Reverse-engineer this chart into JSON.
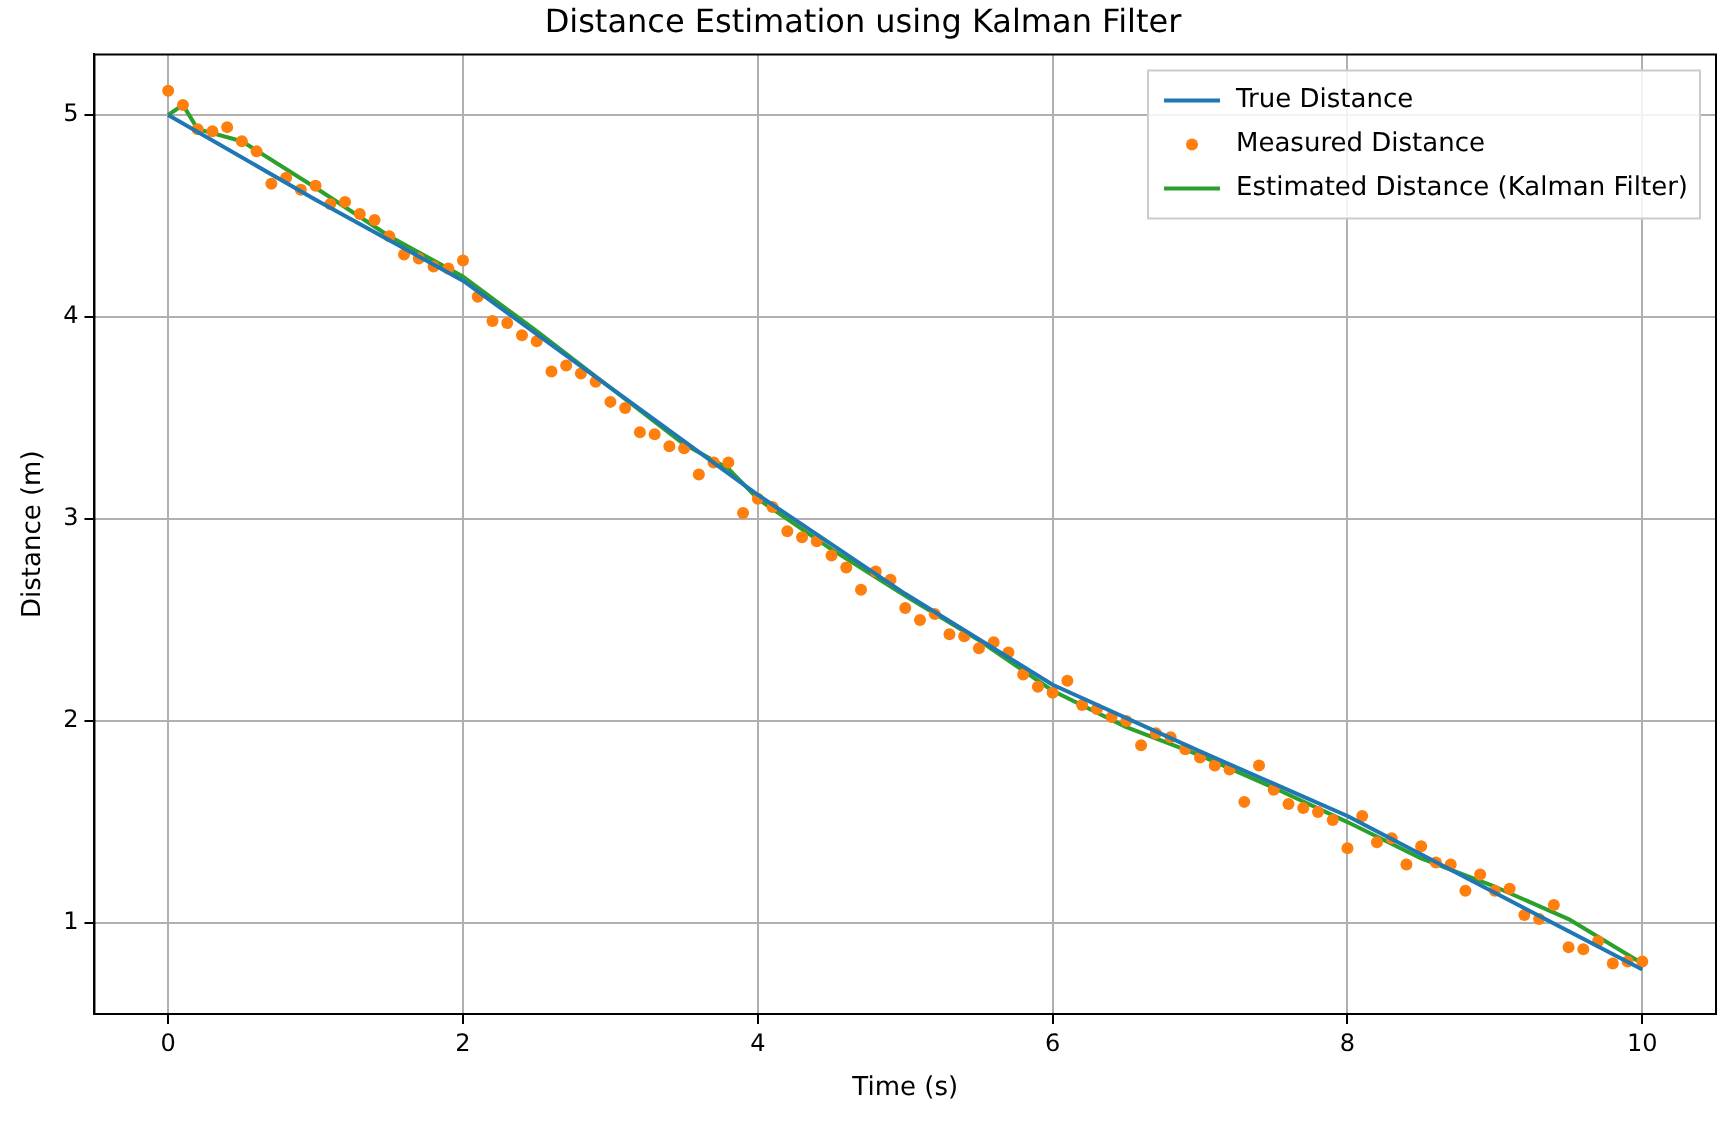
{
  "chart_data": {
    "type": "line",
    "title": "Distance Estimation using Kalman Filter",
    "xlabel": "Time (s)",
    "ylabel": "Distance (m)",
    "xlim": [
      -0.5,
      10.5
    ],
    "ylim": [
      0.55,
      5.3
    ],
    "xticks": [
      0,
      2,
      4,
      6,
      8,
      10
    ],
    "yticks": [
      1,
      2,
      3,
      4,
      5
    ],
    "grid": true,
    "legend": "top right",
    "series": [
      {
        "name": "True Distance",
        "color": "#1f77b4",
        "marker": "none",
        "x": [
          0,
          1,
          2,
          3,
          4,
          5,
          6,
          7,
          8,
          9,
          10
        ],
        "values": [
          5,
          4.58,
          4.18,
          3.65,
          3.12,
          2.63,
          2.18,
          1.85,
          1.53,
          1.15,
          0.77
        ]
      },
      {
        "name": "Measured Distance",
        "color": "#ff7f0e",
        "type": "scatter",
        "marker": "circle",
        "x": [
          0,
          0.1,
          0.2,
          0.3,
          0.4,
          0.5,
          0.6,
          0.7,
          0.8,
          0.9,
          1,
          1.1,
          1.2,
          1.3,
          1.4,
          1.5,
          1.6,
          1.7,
          1.8,
          1.9,
          2,
          2.1,
          2.2,
          2.3,
          2.4,
          2.5,
          2.6,
          2.7,
          2.8,
          2.9,
          3,
          3.1,
          3.2,
          3.3,
          3.4,
          3.5,
          3.6,
          3.7,
          3.8,
          3.9,
          4,
          4.1,
          4.2,
          4.3,
          4.4,
          4.5,
          4.6,
          4.7,
          4.8,
          4.9,
          5,
          5.1,
          5.2,
          5.3,
          5.4,
          5.5,
          5.6,
          5.7,
          5.8,
          5.9,
          6,
          6.1,
          6.2,
          6.3,
          6.4,
          6.5,
          6.6,
          6.7,
          6.8,
          6.9,
          7,
          7.1,
          7.2,
          7.3,
          7.4,
          7.5,
          7.6,
          7.7,
          7.8,
          7.9,
          8,
          8.1,
          8.2,
          8.3,
          8.4,
          8.5,
          8.6,
          8.7,
          8.8,
          8.9,
          9,
          9.1,
          9.2,
          9.3,
          9.4,
          9.5,
          9.6,
          9.7,
          9.8,
          9.9,
          10
        ],
        "values": [
          5.12,
          5.05,
          4.93,
          4.92,
          4.94,
          4.87,
          4.82,
          4.66,
          4.69,
          4.63,
          4.65,
          4.56,
          4.57,
          4.51,
          4.48,
          4.4,
          4.31,
          4.29,
          4.25,
          4.24,
          4.28,
          4.1,
          3.98,
          3.97,
          3.91,
          3.88,
          3.73,
          3.76,
          3.72,
          3.68,
          3.58,
          3.55,
          3.43,
          3.42,
          3.36,
          3.35,
          3.22,
          3.28,
          3.28,
          3.03,
          3.1,
          3.06,
          2.94,
          2.91,
          2.89,
          2.82,
          2.76,
          2.65,
          2.74,
          2.7,
          2.56,
          2.5,
          2.53,
          2.43,
          2.42,
          2.36,
          2.39,
          2.34,
          2.23,
          2.17,
          2.14,
          2.2,
          2.08,
          2.06,
          2.02,
          2,
          1.88,
          1.94,
          1.92,
          1.86,
          1.82,
          1.78,
          1.76,
          1.6,
          1.78,
          1.66,
          1.59,
          1.57,
          1.55,
          1.51,
          1.37,
          1.53,
          1.4,
          1.42,
          1.29,
          1.38,
          1.3,
          1.29,
          1.16,
          1.24,
          1.16,
          1.17,
          1.04,
          1.02,
          1.09,
          0.88,
          0.87,
          0.91,
          0.8,
          0.81,
          0.81
        ]
      },
      {
        "name": "Estimated Distance (Kalman Filter)",
        "color": "#2ca02c",
        "marker": "none",
        "x": [
          0,
          0.1,
          0.2,
          0.5,
          1,
          1.5,
          2,
          2.5,
          3,
          3.5,
          3.8,
          4,
          4.5,
          5,
          5.5,
          6,
          6.5,
          7,
          7.5,
          8,
          8.5,
          9,
          9.5,
          10
        ],
        "values": [
          5,
          5.05,
          4.93,
          4.87,
          4.64,
          4.4,
          4.2,
          3.93,
          3.65,
          3.37,
          3.25,
          3.1,
          2.85,
          2.62,
          2.4,
          2.15,
          1.97,
          1.83,
          1.67,
          1.5,
          1.32,
          1.18,
          1.02,
          0.8
        ]
      }
    ]
  }
}
